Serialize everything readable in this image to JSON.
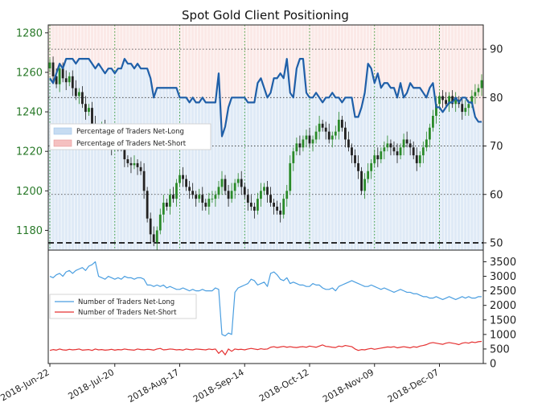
{
  "chart_data": [
    {
      "type": "candlestick+line",
      "title": "Spot Gold Client Positioning",
      "left_axis": {
        "ticks": [
          1180,
          1200,
          1220,
          1240,
          1260,
          1280
        ],
        "range": [
          1170,
          1284
        ],
        "color": "#2a7a2a"
      },
      "right_axis": {
        "ticks": [
          50,
          60,
          70,
          80,
          90
        ],
        "range": [
          48.5,
          95
        ]
      },
      "grid_levels_right": [
        50,
        60,
        70,
        80,
        90
      ],
      "reference_line": {
        "value": 50,
        "style": "dashed",
        "color": "#000000"
      },
      "legend": {
        "position": "middle-left",
        "entries": [
          "Percentage of Traders Net-Long",
          "Percentage of Traders Net-Short"
        ],
        "colors": [
          "#c6dcf2",
          "#f5c0c0"
        ]
      },
      "net_long_pct_series": {
        "color": "#1f5fa8",
        "values": [
          84,
          83,
          85,
          87,
          86,
          88,
          88,
          88,
          87,
          88,
          88,
          88,
          88,
          87,
          86,
          87,
          86,
          85,
          86,
          86,
          85,
          86,
          86,
          88,
          87,
          87,
          86,
          87,
          86,
          86,
          86,
          84,
          80,
          82,
          82,
          82,
          82,
          82,
          82,
          82,
          80,
          80,
          80,
          79,
          80,
          79,
          79,
          80,
          79,
          79,
          79,
          79,
          85,
          72,
          74,
          78,
          80,
          80,
          80,
          80,
          80,
          79,
          79,
          79,
          83,
          84,
          82,
          80,
          81,
          84,
          84,
          85,
          84,
          88,
          81,
          80,
          86,
          88,
          88,
          81,
          80,
          80,
          81,
          80,
          79,
          80,
          80,
          81,
          80,
          80,
          79,
          80,
          80,
          80,
          76,
          76,
          78,
          81,
          87,
          86,
          83,
          85,
          82,
          83,
          83,
          82,
          82,
          80,
          83,
          80,
          81,
          83,
          82,
          82,
          82,
          81,
          80,
          82,
          83,
          78,
          78,
          77,
          78,
          79,
          79,
          80,
          79,
          80,
          80,
          79,
          79,
          76,
          75,
          75
        ]
      },
      "price_candles": {
        "up_color": "#2a8a2a",
        "down_color": "#222222",
        "close_values": [
          1265,
          1258,
          1254,
          1262,
          1257,
          1255,
          1258,
          1252,
          1248,
          1250,
          1244,
          1240,
          1242,
          1234,
          1230,
          1226,
          1232,
          1230,
          1224,
          1222,
          1226,
          1224,
          1222,
          1216,
          1214,
          1213,
          1214,
          1212,
          1210,
          1200,
          1186,
          1178,
          1174,
          1180,
          1188,
          1194,
          1192,
          1198,
          1196,
          1204,
          1208,
          1206,
          1202,
          1200,
          1198,
          1196,
          1198,
          1194,
          1192,
          1196,
          1196,
          1198,
          1202,
          1206,
          1200,
          1196,
          1200,
          1204,
          1206,
          1202,
          1198,
          1194,
          1192,
          1190,
          1196,
          1200,
          1202,
          1198,
          1194,
          1192,
          1190,
          1188,
          1196,
          1200,
          1214,
          1220,
          1224,
          1222,
          1226,
          1228,
          1224,
          1226,
          1230,
          1234,
          1232,
          1230,
          1226,
          1228,
          1230,
          1236,
          1232,
          1226,
          1222,
          1218,
          1214,
          1210,
          1200,
          1206,
          1210,
          1214,
          1218,
          1216,
          1220,
          1222,
          1224,
          1222,
          1220,
          1218,
          1222,
          1226,
          1224,
          1222,
          1218,
          1214,
          1218,
          1222,
          1226,
          1232,
          1238,
          1244,
          1248,
          1246,
          1244,
          1248,
          1244,
          1246,
          1244,
          1240,
          1242,
          1244,
          1248,
          1250,
          1252,
          1256
        ]
      }
    },
    {
      "type": "line",
      "y_axis": {
        "ticks": [
          0,
          500,
          1000,
          1500,
          2000,
          2500,
          3000,
          3500
        ],
        "range": [
          0,
          3900
        ]
      },
      "x_axis": {
        "tick_labels": [
          "2018-Jun-22",
          "2018-Jul-20",
          "2018-Aug-17",
          "2018-Sep-14",
          "2018-Oct-12",
          "2018-Nov-09",
          "2018-Dec-07"
        ],
        "tick_index": [
          0,
          20,
          40,
          60,
          80,
          100,
          120
        ]
      },
      "legend": {
        "position": "middle-left",
        "entries": [
          "Number of Traders Net-Long",
          "Number of Traders Net-Short"
        ],
        "colors": [
          "#4a9ee0",
          "#e53030"
        ]
      },
      "series": [
        {
          "name": "Number of Traders Net-Long",
          "color": "#4a9ee0",
          "values": [
            3000,
            2950,
            3050,
            3100,
            3000,
            3150,
            3200,
            3100,
            3200,
            3250,
            3300,
            3200,
            3350,
            3400,
            3500,
            3000,
            2950,
            2900,
            3000,
            2950,
            2900,
            2950,
            2900,
            3000,
            2950,
            2950,
            2900,
            2950,
            2950,
            2900,
            2700,
            2700,
            2650,
            2700,
            2650,
            2700,
            2600,
            2650,
            2600,
            2550,
            2550,
            2600,
            2550,
            2500,
            2550,
            2500,
            2500,
            2550,
            2500,
            2500,
            2500,
            2600,
            2550,
            1000,
            950,
            1050,
            1000,
            2450,
            2600,
            2650,
            2700,
            2750,
            2900,
            2850,
            2700,
            2750,
            2800,
            2650,
            3100,
            3150,
            3050,
            2900,
            2850,
            2950,
            2750,
            2800,
            2750,
            2700,
            2700,
            2650,
            2650,
            2750,
            2700,
            2700,
            2600,
            2550,
            2550,
            2600,
            2500,
            2650,
            2700,
            2750,
            2800,
            2850,
            2800,
            2750,
            2700,
            2650,
            2650,
            2700,
            2650,
            2600,
            2550,
            2600,
            2550,
            2500,
            2450,
            2500,
            2550,
            2500,
            2450,
            2450,
            2400,
            2400,
            2350,
            2300,
            2300,
            2250,
            2250,
            2300,
            2250,
            2200,
            2250,
            2300,
            2250,
            2200,
            2250,
            2300,
            2250,
            2300,
            2250,
            2250,
            2300,
            2300
          ]
        },
        {
          "name": "Number of Traders Net-Short",
          "color": "#e53030",
          "values": [
            450,
            480,
            460,
            500,
            470,
            460,
            490,
            470,
            480,
            500,
            460,
            470,
            480,
            450,
            500,
            470,
            480,
            460,
            470,
            490,
            460,
            480,
            470,
            500,
            480,
            470,
            460,
            500,
            480,
            470,
            490,
            480,
            460,
            500,
            520,
            470,
            480,
            500,
            490,
            470,
            480,
            460,
            500,
            480,
            470,
            500,
            490,
            480,
            470,
            500,
            480,
            500,
            350,
            450,
            300,
            500,
            420,
            500,
            480,
            490,
            470,
            500,
            520,
            500,
            480,
            510,
            490,
            500,
            560,
            580,
            550,
            570,
            590,
            560,
            580,
            560,
            550,
            570,
            580,
            560,
            600,
            580,
            560,
            600,
            640,
            590,
            580,
            560,
            550,
            600,
            580,
            620,
            600,
            580,
            500,
            450,
            480,
            470,
            500,
            520,
            490,
            510,
            530,
            550,
            570,
            560,
            580,
            540,
            560,
            580,
            560,
            540,
            580,
            560,
            600,
            620,
            650,
            700,
            720,
            700,
            680,
            660,
            700,
            720,
            700,
            680,
            650,
            700,
            720,
            700,
            740,
            720,
            750,
            760
          ]
        }
      ]
    }
  ]
}
